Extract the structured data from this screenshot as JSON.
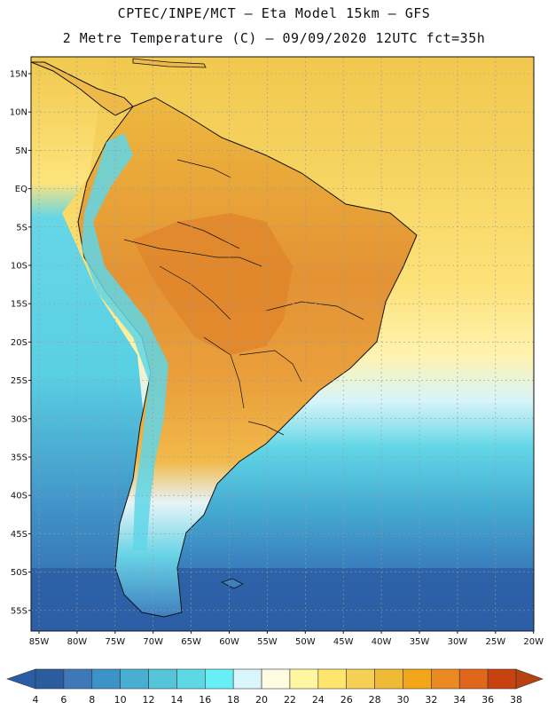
{
  "header": {
    "line1": "CPTEC/INPE/MCT –  Eta Model 15km – GFS",
    "line2": "2 Metre Temperature (C) – 09/09/2020 12UTC fct=35h"
  },
  "map": {
    "lat_ticks": [
      "15N",
      "10N",
      "5N",
      "EQ",
      "5S",
      "10S",
      "15S",
      "20S",
      "25S",
      "30S",
      "35S",
      "40S",
      "45S",
      "50S",
      "55S"
    ],
    "lon_ticks": [
      "85W",
      "80W",
      "75W",
      "70W",
      "65W",
      "60W",
      "55W",
      "50W",
      "45W",
      "40W",
      "35W",
      "30W",
      "25W",
      "20W"
    ],
    "ocean_cold": "#2f6aa8",
    "ocean_warm": "#f2c548",
    "land_hot": "#e08a2a",
    "andes_cold": "#5ad2e8"
  },
  "colorbar": {
    "labels": [
      "4",
      "6",
      "8",
      "10",
      "12",
      "14",
      "16",
      "18",
      "20",
      "22",
      "24",
      "26",
      "28",
      "30",
      "32",
      "34",
      "36",
      "38"
    ],
    "colors": [
      "#2a5c9e",
      "#3f78b8",
      "#3d93c7",
      "#48afd2",
      "#55c4d8",
      "#5fd8e6",
      "#66f0f5",
      "#d8f6fb",
      "#fffbe0",
      "#fff7a0",
      "#fde56e",
      "#f6d054",
      "#efba36",
      "#f2a71a",
      "#ec8a22",
      "#e0661c",
      "#c84210"
    ],
    "low_end": "#2b5da6",
    "high_end": "#b8420f"
  }
}
